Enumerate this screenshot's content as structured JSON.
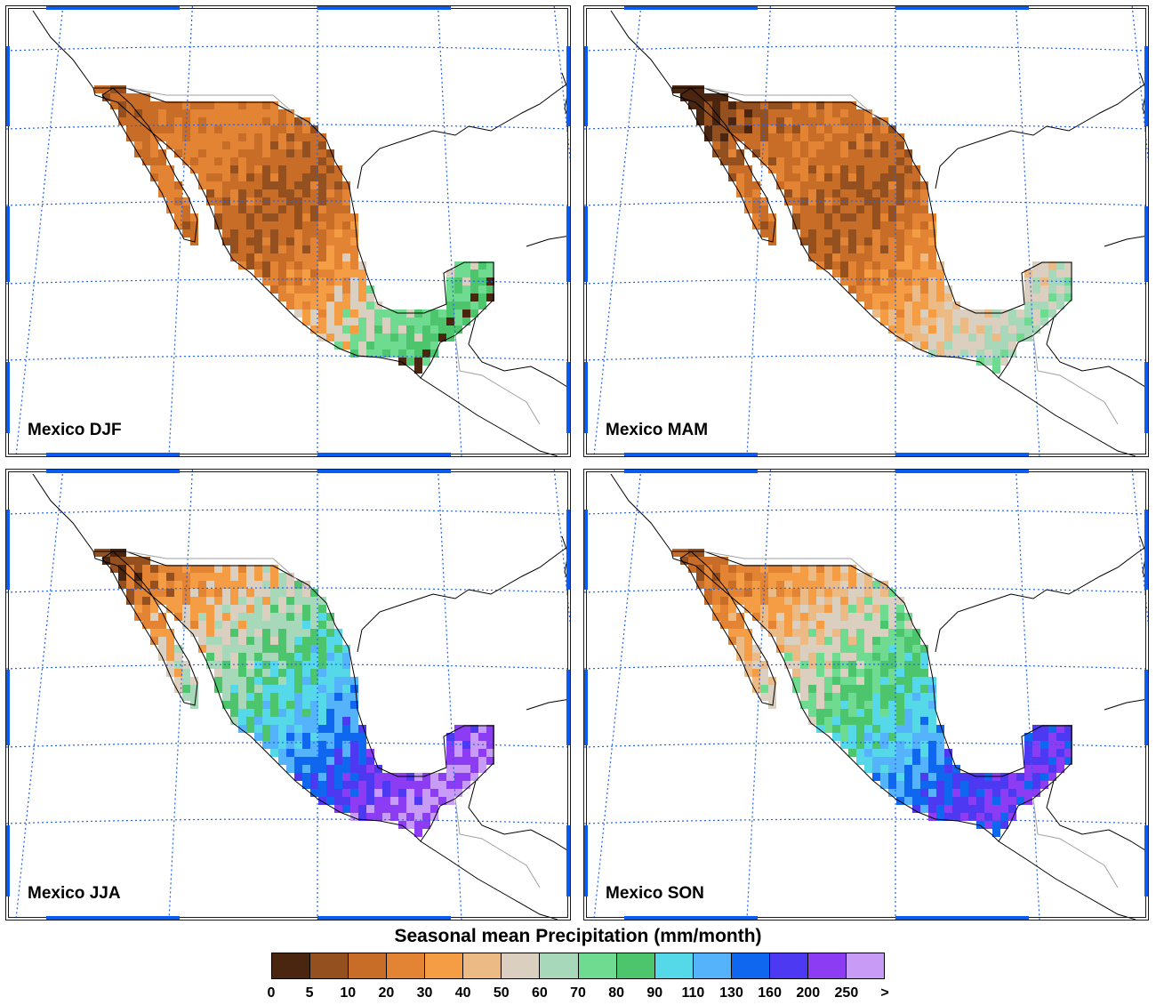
{
  "panels": [
    {
      "id": "djf",
      "label": "Mexico DJF",
      "palette": [
        1,
        2,
        2,
        3,
        3,
        2,
        1,
        2,
        3,
        4,
        6,
        8,
        9,
        0,
        1
      ]
    },
    {
      "id": "mam",
      "label": "Mexico MAM",
      "palette": [
        0,
        0,
        1,
        2,
        3,
        2,
        1,
        2,
        3,
        4,
        5,
        6,
        7,
        8,
        9
      ]
    },
    {
      "id": "jja",
      "label": "Mexico JJA",
      "palette": [
        0,
        1,
        3,
        4,
        6,
        7,
        9,
        10,
        11,
        12,
        13,
        14,
        15,
        14,
        13
      ]
    },
    {
      "id": "son",
      "label": "Mexico SON",
      "palette": [
        1,
        2,
        3,
        4,
        5,
        6,
        8,
        9,
        10,
        11,
        12,
        13,
        14,
        12,
        11
      ]
    }
  ],
  "colorbar": {
    "title": "Seasonal mean Precipitation (mm/month)",
    "ticks": [
      "0",
      "5",
      "10",
      "20",
      "30",
      "40",
      "50",
      "60",
      "70",
      "80",
      "90",
      "110",
      "130",
      "160",
      "200",
      "250",
      ">"
    ],
    "colors": [
      "#4a2510",
      "#95501f",
      "#c86d28",
      "#e28433",
      "#f59d45",
      "#ebba85",
      "#dbcfc0",
      "#a7d8b9",
      "#6fdb91",
      "#4cc56d",
      "#55d8e8",
      "#54b3fa",
      "#0f67f0",
      "#4d39f2",
      "#8c3cf2",
      "#c79bf6"
    ]
  },
  "map_style": {
    "grid_color": "#1f62f0",
    "frame_tick_color": "#0a5bf0",
    "coast_color": "#000000",
    "border_color": "#a0a0a0"
  }
}
